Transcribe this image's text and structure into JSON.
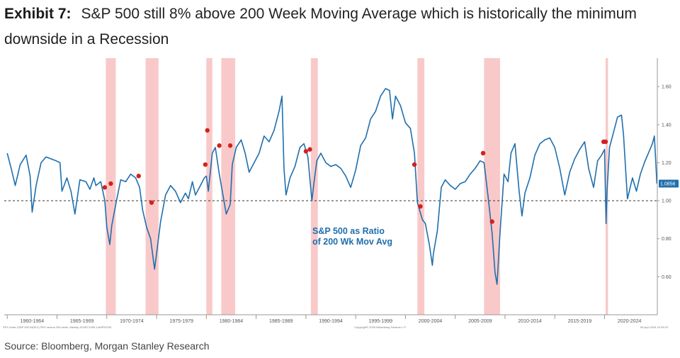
{
  "header": {
    "exhibit": "Exhibit 7:",
    "title": "S&P 500 still 8% above 200 Week Moving Average which is historically the minimum downside in a Recession"
  },
  "source": "Source: Bloomberg, Morgan Stanley Research",
  "footnote_left": "SPX Index (S&P 500 INDEX) SPX versus 200 week, Weekly 31DEC1959-14APR2025",
  "footnote_center": "Copyright© 2025 Bloomberg Finance L.P.",
  "footnote_right": "06-Apr-2025 10:29:03",
  "colors": {
    "line": "#1f6fad",
    "recession": "#f9c9c9",
    "marker": "#d42020",
    "axis": "#888888"
  },
  "chart_data": {
    "type": "line",
    "annotation": "S&P 500 as Ratio\nof 200 Wk Mov Avg",
    "last_value_label": "1.0856",
    "ylim": [
      0.4,
      1.75
    ],
    "y_ticks": [
      0.6,
      0.8,
      1.0,
      1.2,
      1.4,
      1.6
    ],
    "y_tick_labels": [
      "0.60",
      "0.80",
      "1.00",
      "1.20",
      "1.40",
      "1.60"
    ],
    "reference_line": 1.0,
    "xlim": [
      1959.7,
      2025.3
    ],
    "x_tick_labels": [
      "1960-1964",
      "1965-1969",
      "1970-1974",
      "1975-1979",
      "1980-1984",
      "1985-1989",
      "1990-1994",
      "1995-1999",
      "2000-2004",
      "2005-2009",
      "2010-2014",
      "2015-2019",
      "2020-2024"
    ],
    "recessions": [
      [
        1969.9,
        1970.9
      ],
      [
        1973.9,
        1975.2
      ],
      [
        1980.0,
        1980.6
      ],
      [
        1981.5,
        1982.9
      ],
      [
        1990.5,
        1991.2
      ],
      [
        2001.2,
        2001.9
      ],
      [
        2007.9,
        2009.5
      ],
      [
        2020.1,
        2020.35
      ]
    ],
    "markers": [
      [
        1969.8,
        1.07
      ],
      [
        1970.4,
        1.09
      ],
      [
        1973.2,
        1.13
      ],
      [
        1974.5,
        0.99
      ],
      [
        1980.1,
        1.37
      ],
      [
        1979.9,
        1.19
      ],
      [
        1981.3,
        1.29
      ],
      [
        1982.4,
        1.29
      ],
      [
        1990.0,
        1.26
      ],
      [
        1990.4,
        1.27
      ],
      [
        2000.9,
        1.19
      ],
      [
        2001.5,
        0.97
      ],
      [
        2007.8,
        1.25
      ],
      [
        2008.7,
        0.89
      ],
      [
        2019.9,
        1.31
      ],
      [
        2020.1,
        1.31
      ]
    ],
    "series": [
      {
        "x": [
          1960.0,
          1960.4,
          1960.8,
          1961.3,
          1961.9,
          1962.3,
          1962.5,
          1962.9,
          1963.4,
          1963.9,
          1964.4,
          1964.9,
          1965.3,
          1965.5,
          1966.0,
          1966.4,
          1966.8,
          1967.3,
          1967.9,
          1968.3,
          1968.7,
          1968.9,
          1969.4,
          1969.8,
          1970.0,
          1970.3,
          1970.5,
          1970.9,
          1971.4,
          1971.9,
          1972.4,
          1972.9,
          1973.3,
          1973.6,
          1974.0,
          1974.4,
          1974.8,
          1975.0,
          1975.4,
          1975.9,
          1976.4,
          1976.9,
          1977.4,
          1977.9,
          1978.2,
          1978.6,
          1978.9,
          1979.4,
          1979.8,
          1980.0,
          1980.2,
          1980.6,
          1980.9,
          1981.3,
          1981.6,
          1982.0,
          1982.4,
          1982.6,
          1983.0,
          1983.5,
          1983.9,
          1984.3,
          1984.8,
          1985.3,
          1985.8,
          1986.3,
          1986.8,
          1987.3,
          1987.6,
          1987.8,
          1988.0,
          1988.4,
          1988.9,
          1989.4,
          1989.8,
          1990.2,
          1990.6,
          1990.8,
          1991.1,
          1991.5,
          1992.0,
          1992.5,
          1993.0,
          1993.5,
          1994.0,
          1994.5,
          1995.0,
          1995.5,
          1996.0,
          1996.5,
          1997.0,
          1997.5,
          1998.0,
          1998.4,
          1998.7,
          1999.0,
          1999.5,
          2000.0,
          2000.5,
          2000.9,
          2001.2,
          2001.7,
          2002.0,
          2002.4,
          2002.7,
          2002.8,
          2003.2,
          2003.6,
          2004.0,
          2004.5,
          2005.0,
          2005.5,
          2006.0,
          2006.5,
          2007.0,
          2007.5,
          2007.9,
          2008.3,
          2008.7,
          2009.0,
          2009.2,
          2009.5,
          2009.9,
          2010.3,
          2010.6,
          2011.0,
          2011.4,
          2011.7,
          2012.0,
          2012.5,
          2013.0,
          2013.5,
          2014.0,
          2014.5,
          2015.0,
          2015.5,
          2016.0,
          2016.5,
          2017.0,
          2017.5,
          2018.0,
          2018.4,
          2018.9,
          2019.3,
          2019.7,
          2020.0,
          2020.15,
          2020.25,
          2020.5,
          2020.9,
          2021.3,
          2021.7,
          2021.9,
          2022.3,
          2022.8,
          2023.2,
          2023.6,
          2024.0,
          2024.4,
          2024.8,
          2025.0,
          2025.15,
          2025.25
        ],
        "values": [
          1.25,
          1.17,
          1.08,
          1.19,
          1.24,
          1.13,
          0.94,
          1.08,
          1.2,
          1.23,
          1.22,
          1.21,
          1.2,
          1.05,
          1.12,
          1.05,
          0.93,
          1.11,
          1.1,
          1.06,
          1.12,
          1.08,
          1.1,
          1.0,
          0.86,
          0.77,
          0.87,
          0.98,
          1.11,
          1.1,
          1.14,
          1.12,
          1.07,
          0.95,
          0.86,
          0.8,
          0.64,
          0.72,
          0.89,
          1.03,
          1.08,
          1.05,
          0.99,
          1.04,
          1.01,
          1.1,
          1.03,
          1.08,
          1.12,
          1.13,
          1.05,
          1.25,
          1.28,
          1.14,
          1.05,
          0.93,
          0.98,
          1.19,
          1.28,
          1.32,
          1.25,
          1.15,
          1.2,
          1.25,
          1.34,
          1.31,
          1.37,
          1.47,
          1.55,
          1.17,
          1.03,
          1.12,
          1.18,
          1.28,
          1.3,
          1.23,
          1.0,
          1.09,
          1.21,
          1.25,
          1.2,
          1.18,
          1.19,
          1.17,
          1.13,
          1.07,
          1.16,
          1.29,
          1.33,
          1.43,
          1.47,
          1.55,
          1.59,
          1.58,
          1.43,
          1.55,
          1.5,
          1.41,
          1.38,
          1.25,
          0.99,
          0.9,
          0.88,
          0.77,
          0.66,
          0.72,
          0.84,
          1.07,
          1.11,
          1.08,
          1.06,
          1.09,
          1.1,
          1.14,
          1.17,
          1.21,
          1.2,
          1.02,
          0.83,
          0.62,
          0.56,
          0.83,
          1.14,
          1.1,
          1.25,
          1.3,
          1.06,
          0.92,
          1.04,
          1.12,
          1.24,
          1.3,
          1.32,
          1.33,
          1.28,
          1.17,
          1.03,
          1.15,
          1.22,
          1.27,
          1.31,
          1.17,
          1.07,
          1.21,
          1.24,
          1.27,
          0.88,
          1.05,
          1.28,
          1.36,
          1.44,
          1.45,
          1.35,
          1.01,
          1.12,
          1.05,
          1.14,
          1.2,
          1.25,
          1.3,
          1.34,
          1.2,
          1.09
        ]
      }
    ]
  }
}
